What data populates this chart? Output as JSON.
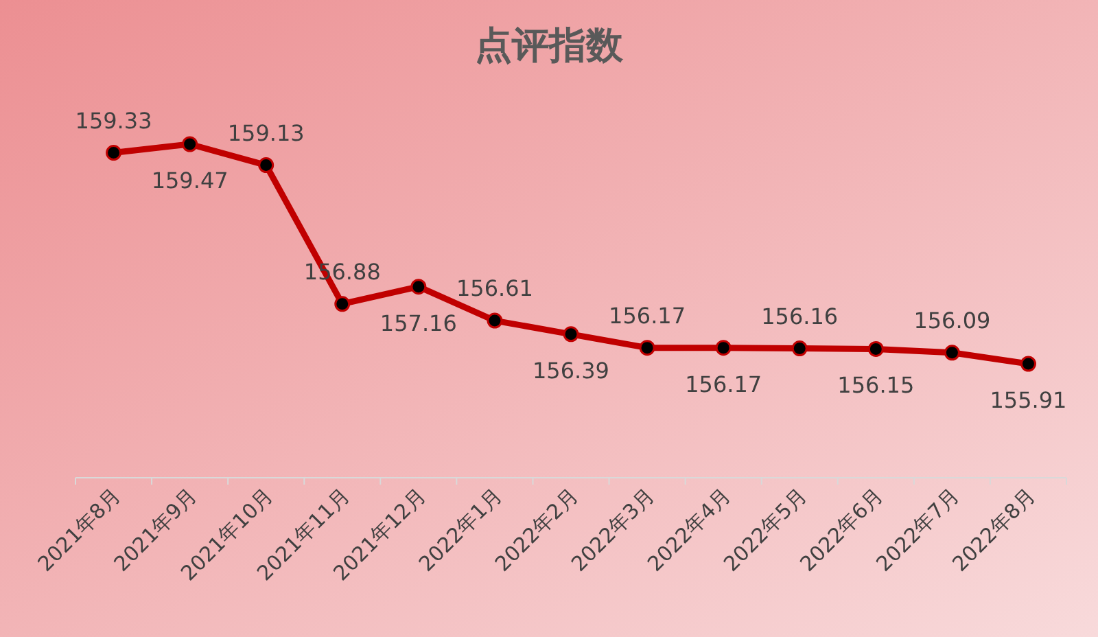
{
  "chart_data": {
    "type": "line",
    "title": "点评指数",
    "categories": [
      "2021年8月",
      "2021年9月",
      "2021年10月",
      "2021年11月",
      "2021年12月",
      "2022年1月",
      "2022年2月",
      "2022年3月",
      "2022年4月",
      "2022年5月",
      "2022年6月",
      "2022年7月",
      "2022年8月"
    ],
    "series": [
      {
        "color": "#c00000",
        "values": [
          159.33,
          159.47,
          159.13,
          156.88,
          157.16,
          156.61,
          156.39,
          156.17,
          156.17,
          156.16,
          156.15,
          156.09,
          155.91
        ]
      }
    ],
    "data_labels": true,
    "marker": "circle"
  }
}
